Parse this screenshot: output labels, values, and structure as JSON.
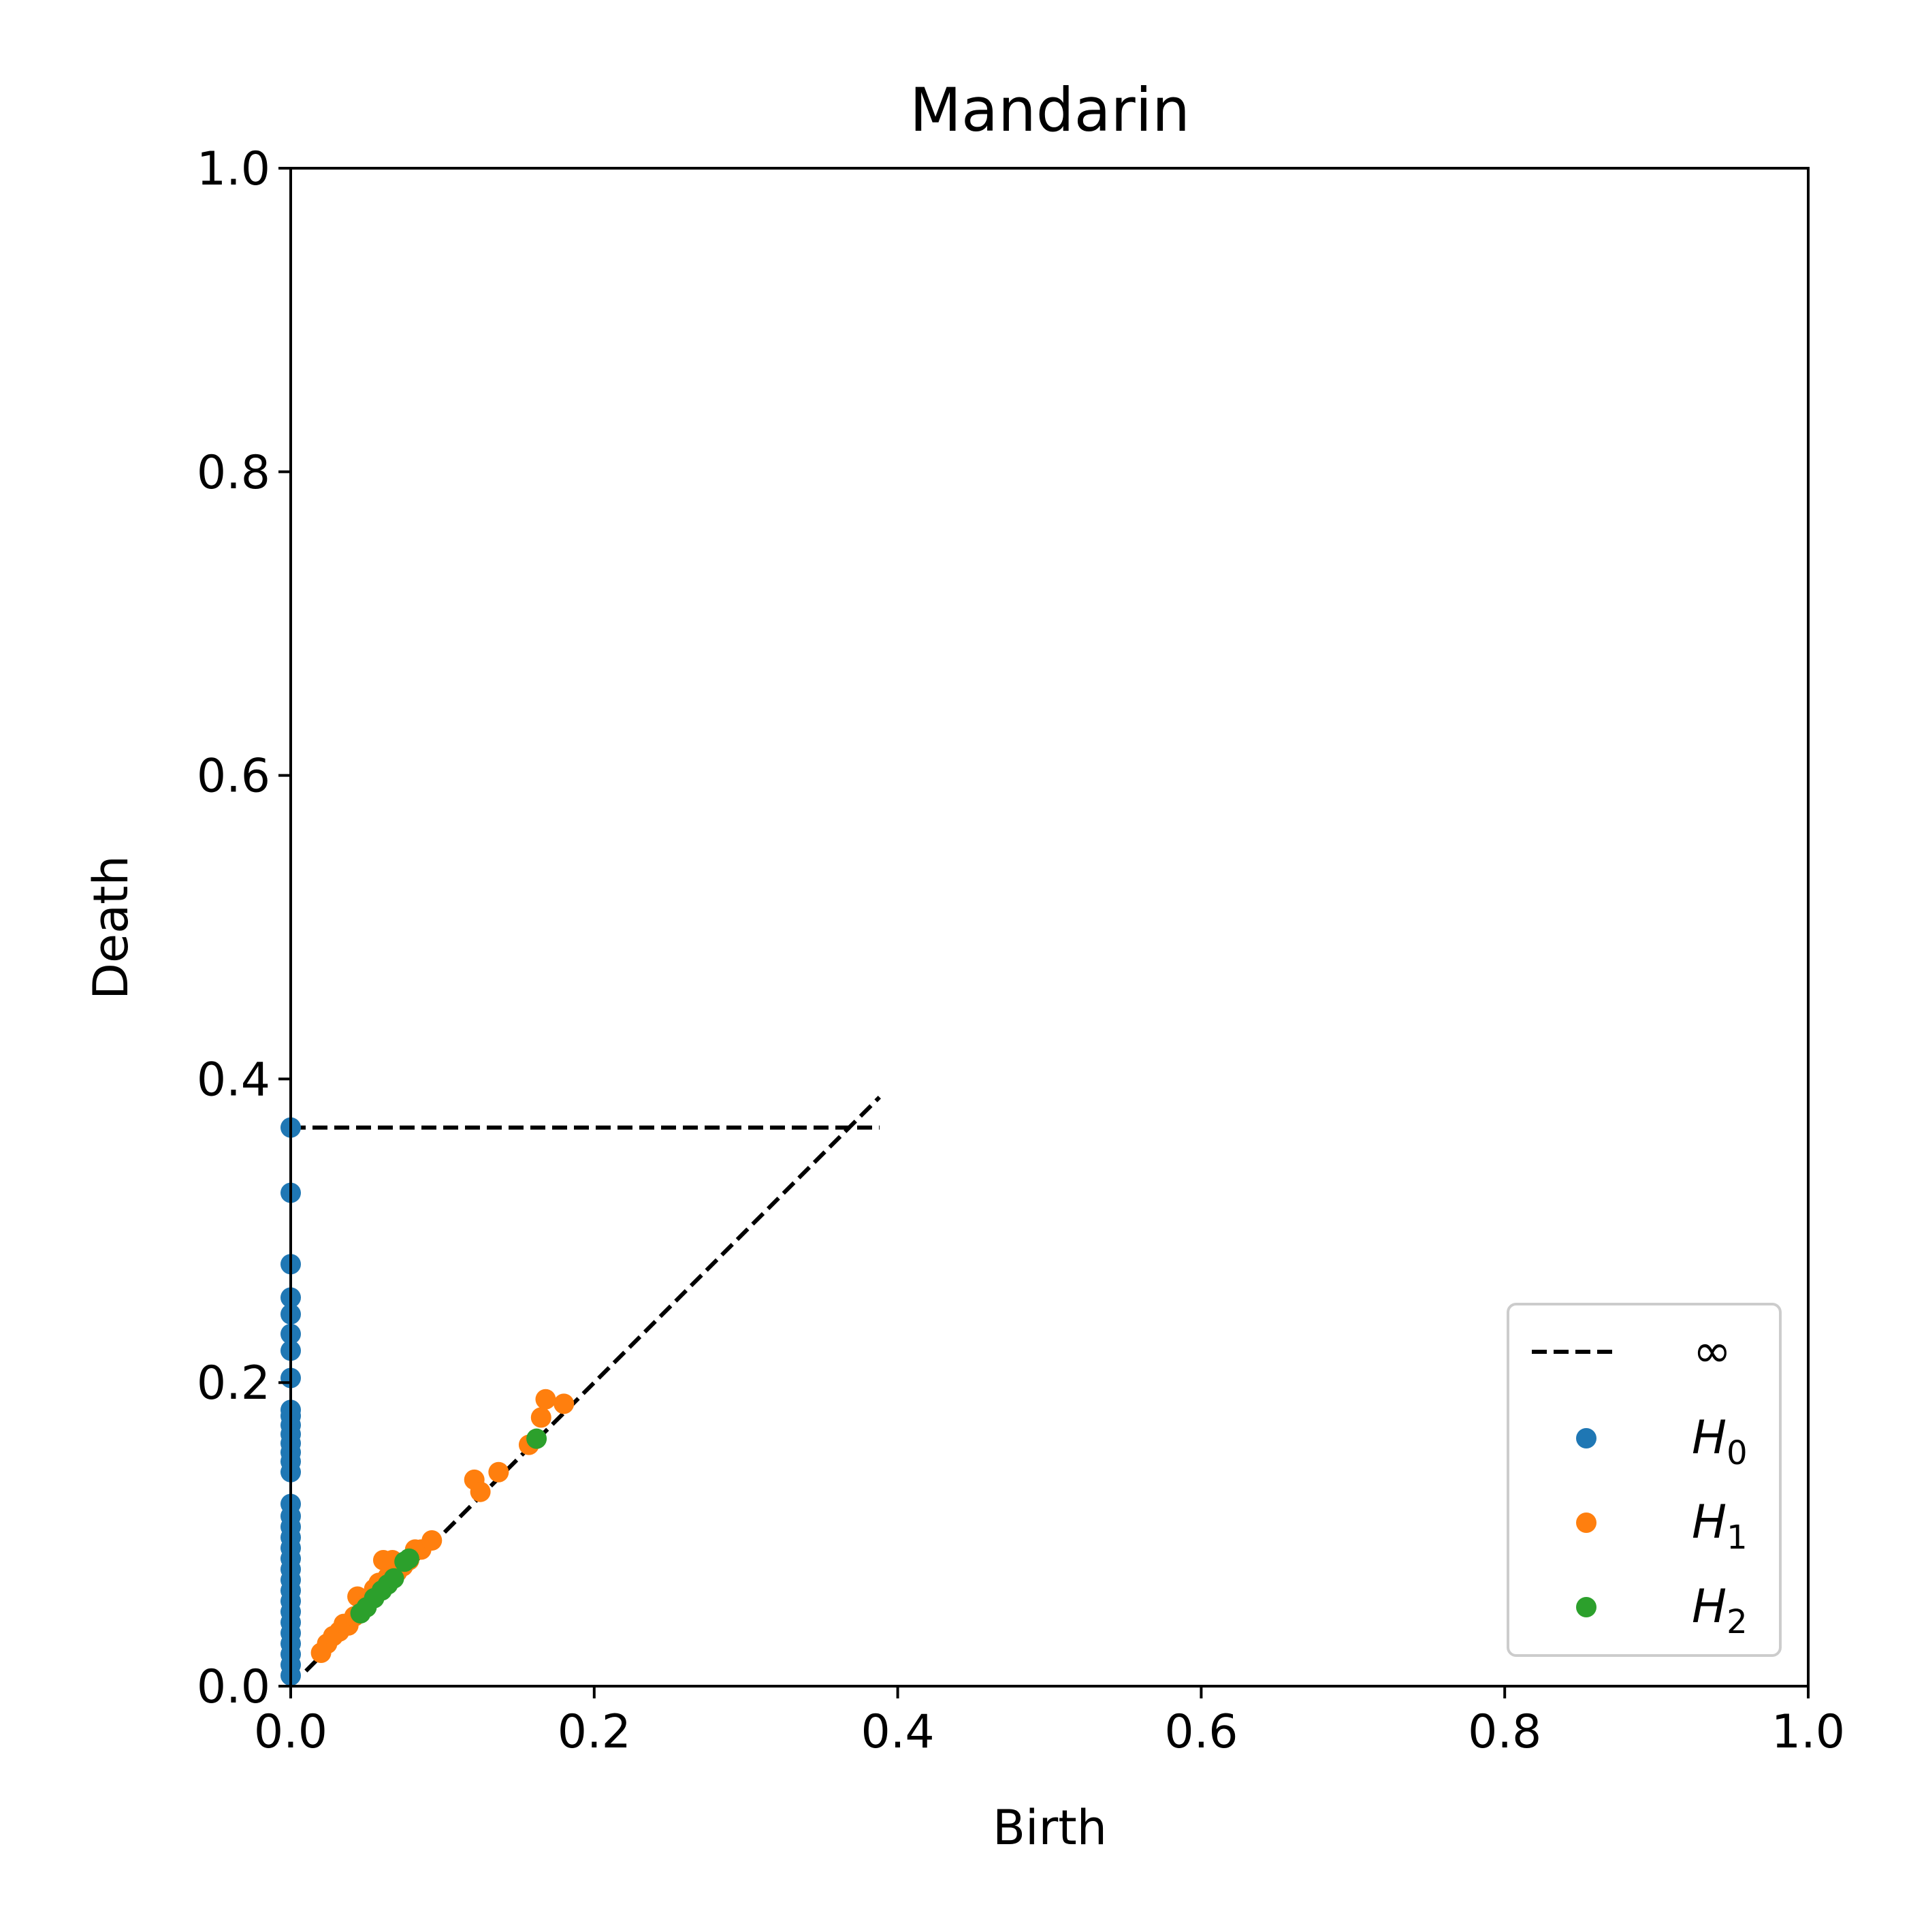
{
  "chart_data": {
    "type": "scatter",
    "title": "Mandarin",
    "xlabel": "Birth",
    "ylabel": "Death",
    "xlim": [
      0.0,
      1.0
    ],
    "ylim": [
      0.0,
      1.0
    ],
    "xticks": [
      "0.0",
      "0.2",
      "0.4",
      "0.6",
      "0.8",
      "1.0"
    ],
    "yticks": [
      "0.0",
      "0.2",
      "0.4",
      "0.6",
      "0.8",
      "1.0"
    ],
    "grid": false,
    "legend_position": "lower-right",
    "infinity_line": {
      "label": "∞",
      "death": 0.368,
      "x_range": [
        0.0,
        0.388
      ]
    },
    "diagonal_line": {
      "x_range": [
        0.01,
        0.388
      ]
    },
    "series": [
      {
        "name": "H0",
        "label_base": "H",
        "label_sub": "0",
        "color": "#1f77b4",
        "points": [
          [
            0,
            0.368
          ],
          [
            0,
            0.325
          ],
          [
            0,
            0.278
          ],
          [
            0,
            0.256
          ],
          [
            0,
            0.245
          ],
          [
            0,
            0.232
          ],
          [
            0,
            0.221
          ],
          [
            0,
            0.203
          ],
          [
            0,
            0.182
          ],
          [
            0,
            0.178
          ],
          [
            0,
            0.172
          ],
          [
            0,
            0.166
          ],
          [
            0,
            0.16
          ],
          [
            0,
            0.154
          ],
          [
            0,
            0.148
          ],
          [
            0,
            0.141
          ],
          [
            0,
            0.12
          ],
          [
            0,
            0.112
          ],
          [
            0,
            0.105
          ],
          [
            0,
            0.098
          ],
          [
            0,
            0.091
          ],
          [
            0,
            0.084
          ],
          [
            0,
            0.077
          ],
          [
            0,
            0.07
          ],
          [
            0,
            0.063
          ],
          [
            0,
            0.056
          ],
          [
            0,
            0.049
          ],
          [
            0,
            0.042
          ],
          [
            0,
            0.035
          ],
          [
            0,
            0.028
          ],
          [
            0,
            0.021
          ],
          [
            0,
            0.014
          ],
          [
            0,
            0.007
          ]
        ]
      },
      {
        "name": "H1",
        "label_base": "H",
        "label_sub": "1",
        "color": "#ff7f0e",
        "points": [
          [
            0.02,
            0.022
          ],
          [
            0.024,
            0.028
          ],
          [
            0.028,
            0.033
          ],
          [
            0.032,
            0.036
          ],
          [
            0.035,
            0.041
          ],
          [
            0.038,
            0.04
          ],
          [
            0.042,
            0.046
          ],
          [
            0.044,
            0.059
          ],
          [
            0.048,
            0.052
          ],
          [
            0.052,
            0.058
          ],
          [
            0.055,
            0.064
          ],
          [
            0.058,
            0.068
          ],
          [
            0.061,
            0.083
          ],
          [
            0.064,
            0.072
          ],
          [
            0.067,
            0.083
          ],
          [
            0.07,
            0.075
          ],
          [
            0.074,
            0.079
          ],
          [
            0.078,
            0.083
          ],
          [
            0.082,
            0.09
          ],
          [
            0.086,
            0.09
          ],
          [
            0.093,
            0.096
          ],
          [
            0.121,
            0.136
          ],
          [
            0.125,
            0.128
          ],
          [
            0.137,
            0.141
          ],
          [
            0.157,
            0.159
          ],
          [
            0.165,
            0.177
          ],
          [
            0.168,
            0.189
          ],
          [
            0.18,
            0.186
          ]
        ]
      },
      {
        "name": "H2",
        "label_base": "H",
        "label_sub": "2",
        "color": "#2ca02c",
        "points": [
          [
            0.046,
            0.048
          ],
          [
            0.05,
            0.052
          ],
          [
            0.055,
            0.058
          ],
          [
            0.06,
            0.063
          ],
          [
            0.064,
            0.067
          ],
          [
            0.068,
            0.071
          ],
          [
            0.075,
            0.082
          ],
          [
            0.078,
            0.084
          ],
          [
            0.162,
            0.163
          ]
        ]
      }
    ]
  }
}
